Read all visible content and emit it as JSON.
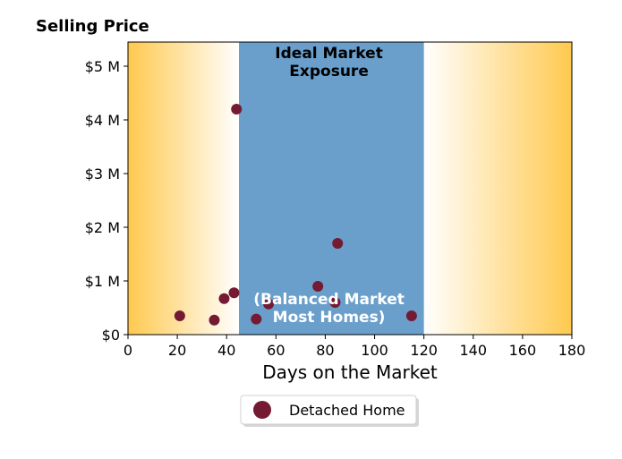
{
  "chart_data": {
    "type": "scatter",
    "title": "Selling Price",
    "xlabel": "Days on the Market",
    "xlim": [
      0,
      180
    ],
    "ylim": [
      0,
      5450000
    ],
    "x_ticks": [
      0,
      20,
      40,
      60,
      80,
      100,
      120,
      140,
      160,
      180
    ],
    "x_tick_labels": [
      "0",
      "20",
      "40",
      "60",
      "80",
      "100",
      "120",
      "140",
      "160",
      "180"
    ],
    "y_ticks": [
      0,
      1000000,
      2000000,
      3000000,
      4000000,
      5000000
    ],
    "y_tick_labels": [
      "$0",
      "$1 M",
      "$2 M",
      "$3 M",
      "$4 M",
      "$5 M"
    ],
    "grid": false,
    "legend_position": "bottom-center",
    "series": [
      {
        "name": "Detached Home",
        "color": "#751a33",
        "points": [
          {
            "x": 21,
            "y": 350000
          },
          {
            "x": 35,
            "y": 270000
          },
          {
            "x": 39,
            "y": 670000
          },
          {
            "x": 43,
            "y": 780000
          },
          {
            "x": 44,
            "y": 4200000
          },
          {
            "x": 52,
            "y": 290000
          },
          {
            "x": 57,
            "y": 570000
          },
          {
            "x": 77,
            "y": 900000
          },
          {
            "x": 84,
            "y": 600000
          },
          {
            "x": 85,
            "y": 1700000
          },
          {
            "x": 115,
            "y": 350000
          }
        ]
      }
    ],
    "regions": [
      {
        "x_range": [
          45,
          120
        ],
        "color": "#6a9fcc",
        "kind": "band"
      },
      {
        "x_range": [
          0,
          45
        ],
        "color": "#ffc94f",
        "kind": "gradient-fade-right"
      },
      {
        "x_range": [
          120,
          180
        ],
        "color": "#ffc94f",
        "kind": "gradient-fade-left"
      }
    ],
    "annotations": [
      {
        "lines": [
          "Ideal Market",
          "Exposure"
        ],
        "x": 81.5,
        "anchor": "top",
        "color": "#000000"
      },
      {
        "lines": [
          "(Balanced Market",
          "Most Homes)"
        ],
        "x": 81.5,
        "anchor": "bottom",
        "color": "#ffffff"
      }
    ]
  }
}
